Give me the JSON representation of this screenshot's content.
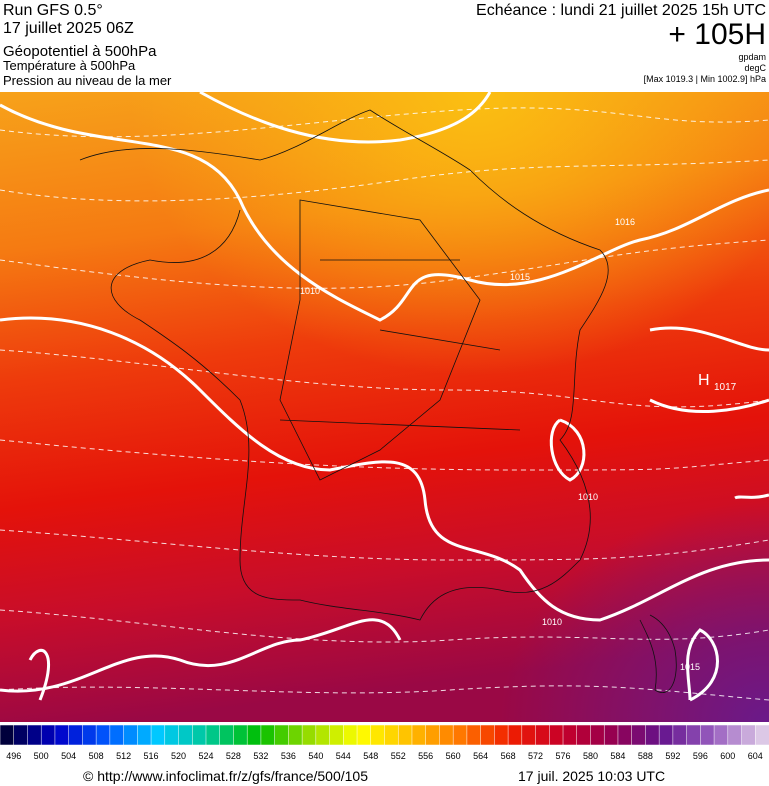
{
  "header": {
    "run": "Run GFS 0.5°",
    "date": "17 juillet 2025 06Z",
    "field1": "Géopotentiel à 500hPa",
    "field2": "Température à 500hPa",
    "field3": "Pression au niveau de la mer",
    "valid": "Echéance : lundi 21 juillet 2025 15h UTC",
    "lead": "+ 105H",
    "unit1": "gpdam",
    "unit2": "degC",
    "range": "[Max 1019.3 | Min 1002.9] hPa"
  },
  "map": {
    "high": "H",
    "high_value": "1017",
    "isobar_labels": [
      "1010",
      "1015",
      "1016",
      "1010",
      "1010",
      "1015"
    ]
  },
  "scale": {
    "labels": [
      496,
      500,
      504,
      508,
      512,
      516,
      520,
      524,
      528,
      532,
      536,
      540,
      544,
      548,
      552,
      556,
      560,
      564,
      568,
      572,
      576,
      580,
      584,
      588,
      592,
      596,
      600,
      604
    ]
  },
  "footer": {
    "source": "© http://www.infoclimat.fr/z/gfs/france/500/105",
    "timestamp": "17 juil. 2025 10:03 UTC"
  }
}
